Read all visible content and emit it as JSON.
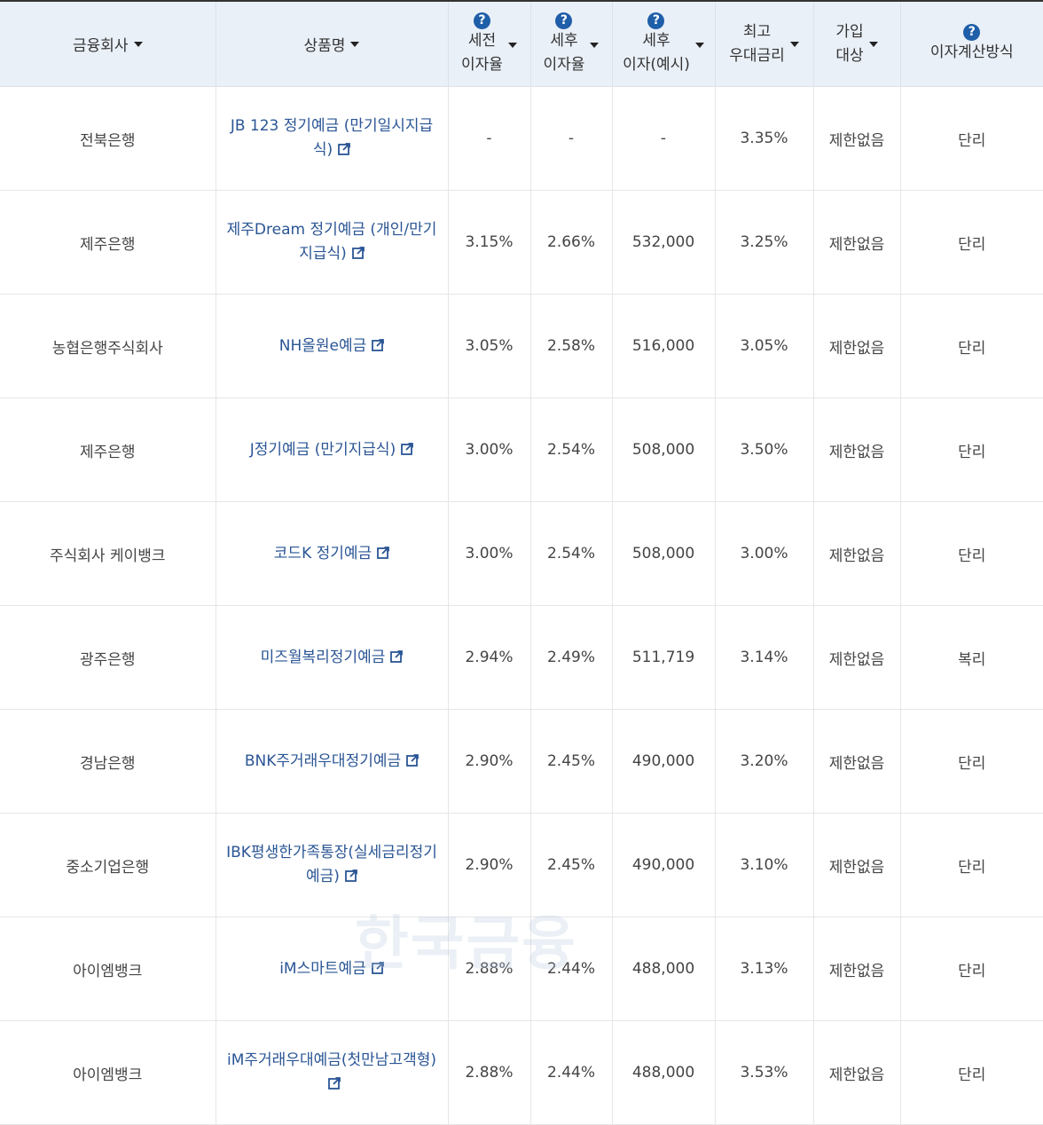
{
  "header": {
    "company": "금융회사",
    "product": "상품명",
    "pre_tax_rate": [
      "세전",
      "이자율"
    ],
    "post_tax_rate": [
      "세후",
      "이자율"
    ],
    "post_tax_interest": [
      "세후",
      "이자(예시)"
    ],
    "max_pref_rate": [
      "최고",
      "우대금리"
    ],
    "eligibility": [
      "가입",
      "대상"
    ],
    "interest_method": "이자계산방식"
  },
  "rows": [
    {
      "company": "전북은행",
      "product": [
        "JB 123 정기예금 (만기일시지급",
        "식)"
      ],
      "pre": "-",
      "post": "-",
      "interest": "-",
      "max": "3.35%",
      "target": "제한없음",
      "method": "단리"
    },
    {
      "company": "제주은행",
      "product": [
        "제주Dream 정기예금 (개인/만기",
        "지급식)"
      ],
      "pre": "3.15%",
      "post": "2.66%",
      "interest": "532,000",
      "max": "3.25%",
      "target": "제한없음",
      "method": "단리"
    },
    {
      "company": "농협은행주식회사",
      "product": [
        "NH올원e예금"
      ],
      "pre": "3.05%",
      "post": "2.58%",
      "interest": "516,000",
      "max": "3.05%",
      "target": "제한없음",
      "method": "단리"
    },
    {
      "company": "제주은행",
      "product": [
        "J정기예금 (만기지급식)"
      ],
      "pre": "3.00%",
      "post": "2.54%",
      "interest": "508,000",
      "max": "3.50%",
      "target": "제한없음",
      "method": "단리"
    },
    {
      "company": "주식회사 케이뱅크",
      "product": [
        "코드K 정기예금"
      ],
      "pre": "3.00%",
      "post": "2.54%",
      "interest": "508,000",
      "max": "3.00%",
      "target": "제한없음",
      "method": "단리"
    },
    {
      "company": "광주은행",
      "product": [
        "미즈월복리정기예금"
      ],
      "pre": "2.94%",
      "post": "2.49%",
      "interest": "511,719",
      "max": "3.14%",
      "target": "제한없음",
      "method": "복리"
    },
    {
      "company": "경남은행",
      "product": [
        "BNK주거래우대정기예금"
      ],
      "pre": "2.90%",
      "post": "2.45%",
      "interest": "490,000",
      "max": "3.20%",
      "target": "제한없음",
      "method": "단리"
    },
    {
      "company": "중소기업은행",
      "product": [
        "IBK평생한가족통장(실세금리정기",
        "예금)"
      ],
      "pre": "2.90%",
      "post": "2.45%",
      "interest": "490,000",
      "max": "3.10%",
      "target": "제한없음",
      "method": "단리"
    },
    {
      "company": "아이엠뱅크",
      "product": [
        "iM스마트예금"
      ],
      "pre": "2.88%",
      "post": "2.44%",
      "interest": "488,000",
      "max": "3.13%",
      "target": "제한없음",
      "method": "단리"
    },
    {
      "company": "아이엠뱅크",
      "product": [
        "iM주거래우대예금(첫만남고객형)",
        ""
      ],
      "pre": "2.88%",
      "post": "2.44%",
      "interest": "488,000",
      "max": "3.53%",
      "target": "제한없음",
      "method": "단리"
    }
  ],
  "help_icon_glyph": "?",
  "watermark": "한국금융",
  "colors": {
    "header_bg": "#eaf0f8",
    "link": "#2a5595",
    "help_icon": "#1f5ea8"
  }
}
